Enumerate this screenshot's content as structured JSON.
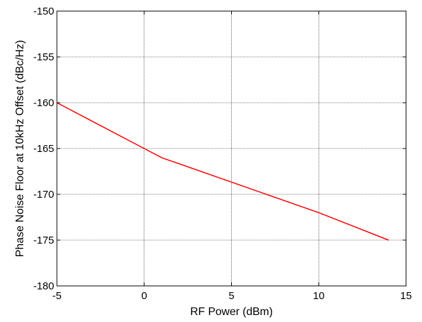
{
  "chart_data": {
    "type": "line",
    "title": "",
    "xlabel": "RF Power (dBm)",
    "ylabel": "Phase Noise Floor at 10kHz Offset (dBc/Hz)",
    "xlim": [
      -5,
      15
    ],
    "ylim": [
      -180,
      -150
    ],
    "xticks": [
      -5,
      0,
      5,
      10,
      15
    ],
    "yticks": [
      -180,
      -175,
      -170,
      -165,
      -160,
      -155,
      -150
    ],
    "xtick_labels": [
      "-5",
      "0",
      "5",
      "10",
      "15"
    ],
    "ytick_labels": [
      "-180",
      "-175",
      "-170",
      "-165",
      "-160",
      "-155",
      "-150"
    ],
    "grid": true,
    "series": [
      {
        "color": "#ff0000",
        "x": [
          -5,
          0,
          1,
          10,
          14
        ],
        "y": [
          -160,
          -165,
          -166,
          -172,
          -175
        ]
      }
    ]
  }
}
